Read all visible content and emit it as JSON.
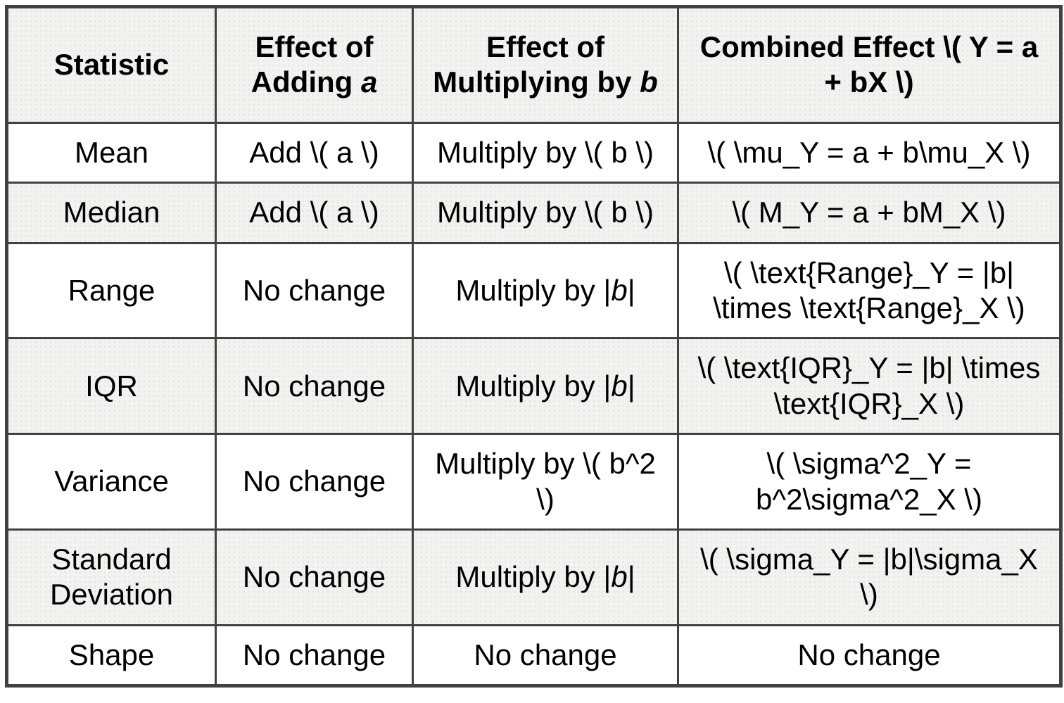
{
  "colors": {
    "border": "#414141",
    "header_bg": "#f2f2f1",
    "stripe_bg": "#f2f2f1",
    "row_bg": "#ffffff",
    "text": "#000000",
    "dot": "#e2e2df"
  },
  "table": {
    "columns": [
      {
        "name": "statistic",
        "segments": [
          {
            "t": "Statistic"
          }
        ]
      },
      {
        "name": "effect-of-adding-a",
        "segments": [
          {
            "t": "Effect of Adding "
          },
          {
            "t": "a",
            "i": true
          }
        ]
      },
      {
        "name": "effect-of-multiplying-by-b",
        "segments": [
          {
            "t": "Effect of Multiplying by "
          },
          {
            "t": "b",
            "i": true
          }
        ]
      },
      {
        "name": "combined-effect",
        "segments": [
          {
            "t": "Combined Effect \\( Y = a + bX \\)"
          }
        ]
      }
    ],
    "rows": [
      {
        "cells": [
          [
            {
              "t": "Mean"
            }
          ],
          [
            {
              "t": "Add \\( a \\)"
            }
          ],
          [
            {
              "t": "Multiply by \\( b \\)"
            }
          ],
          [
            {
              "t": "\\( \\mu_Y = a + b\\mu_X \\)"
            }
          ]
        ]
      },
      {
        "cells": [
          [
            {
              "t": "Median"
            }
          ],
          [
            {
              "t": "Add \\( a \\)"
            }
          ],
          [
            {
              "t": "Multiply by \\( b \\)"
            }
          ],
          [
            {
              "t": "\\( M_Y = a + bM_X \\)"
            }
          ]
        ]
      },
      {
        "cells": [
          [
            {
              "t": "Range"
            }
          ],
          [
            {
              "t": "No change"
            }
          ],
          [
            {
              "t": "Multiply by |"
            },
            {
              "t": "b",
              "i": true
            },
            {
              "t": "|"
            }
          ],
          [
            {
              "t": "\\( \\text{Range}_Y = |b| \\times \\text{Range}_X \\)"
            }
          ]
        ]
      },
      {
        "cells": [
          [
            {
              "t": "IQR"
            }
          ],
          [
            {
              "t": "No change"
            }
          ],
          [
            {
              "t": "Multiply by |"
            },
            {
              "t": "b",
              "i": true
            },
            {
              "t": "|"
            }
          ],
          [
            {
              "t": "\\( \\text{IQR}_Y = |b| \\times \\text{IQR}_X \\)"
            }
          ]
        ]
      },
      {
        "cells": [
          [
            {
              "t": "Variance"
            }
          ],
          [
            {
              "t": "No change"
            }
          ],
          [
            {
              "t": "Multiply by \\( b^2 \\)"
            }
          ],
          [
            {
              "t": "\\( \\sigma^2_Y = b^2\\sigma^2_X \\)"
            }
          ]
        ]
      },
      {
        "cells": [
          [
            {
              "t": "Standard Deviation"
            }
          ],
          [
            {
              "t": "No change"
            }
          ],
          [
            {
              "t": "Multiply by |"
            },
            {
              "t": "b",
              "i": true
            },
            {
              "t": "|"
            }
          ],
          [
            {
              "t": "\\( \\sigma_Y = |b|\\sigma_X \\)"
            }
          ]
        ]
      },
      {
        "cells": [
          [
            {
              "t": "Shape"
            }
          ],
          [
            {
              "t": "No change"
            }
          ],
          [
            {
              "t": "No change"
            }
          ],
          [
            {
              "t": "No change"
            }
          ]
        ]
      }
    ]
  }
}
